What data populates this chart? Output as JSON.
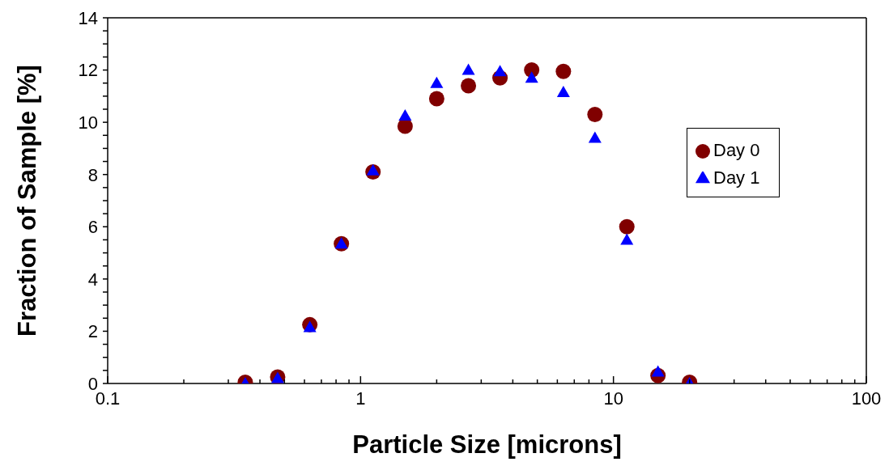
{
  "chart_data": {
    "type": "scatter",
    "xlabel": "Particle Size [microns]",
    "ylabel": "Fraction of Sample [%]",
    "log": "x",
    "grid": false,
    "legend": "right",
    "xlim": [
      0.1,
      100
    ],
    "ylim": [
      0,
      14
    ],
    "xticks": [
      0.1,
      {
        "value": 0.2,
        "label": null
      },
      {
        "value": 0.3,
        "label": null
      },
      {
        "value": 0.4,
        "label": null
      },
      {
        "value": 0.5,
        "label": null
      },
      {
        "value": 0.6,
        "label": null
      },
      {
        "value": 0.7,
        "label": null
      },
      {
        "value": 0.8,
        "label": null
      },
      {
        "value": 0.9,
        "label": null
      },
      1,
      {
        "value": 2,
        "label": null
      },
      {
        "value": 3,
        "label": null
      },
      {
        "value": 4,
        "label": null
      },
      {
        "value": 5,
        "label": null
      },
      {
        "value": 6,
        "label": null
      },
      {
        "value": 7,
        "label": null
      },
      {
        "value": 8,
        "label": null
      },
      {
        "value": 9,
        "label": null
      },
      10,
      {
        "value": 20,
        "label": null
      },
      {
        "value": 30,
        "label": null
      },
      {
        "value": 40,
        "label": null
      },
      {
        "value": 50,
        "label": null
      },
      {
        "value": 60,
        "label": null
      },
      {
        "value": 70,
        "label": null
      },
      {
        "value": 80,
        "label": null
      },
      {
        "value": 90,
        "label": null
      },
      100
    ],
    "yticks": [
      0,
      {
        "value": 0.5,
        "label": null
      },
      {
        "value": 1,
        "label": null
      },
      {
        "value": 1.5,
        "label": null
      },
      2,
      {
        "value": 2.5,
        "label": null
      },
      {
        "value": 3,
        "label": null
      },
      {
        "value": 3.5,
        "label": null
      },
      4,
      {
        "value": 4.5,
        "label": null
      },
      {
        "value": 5,
        "label": null
      },
      {
        "value": 5.5,
        "label": null
      },
      6,
      {
        "value": 6.5,
        "label": null
      },
      {
        "value": 7,
        "label": null
      },
      {
        "value": 7.5,
        "label": null
      },
      8,
      {
        "value": 8.5,
        "label": null
      },
      {
        "value": 9,
        "label": null
      },
      {
        "value": 9.5,
        "label": null
      },
      10,
      {
        "value": 10.5,
        "label": null
      },
      {
        "value": 11,
        "label": null
      },
      {
        "value": 11.5,
        "label": null
      },
      12,
      {
        "value": 12.5,
        "label": null
      },
      {
        "value": 13,
        "label": null
      },
      {
        "value": 13.5,
        "label": null
      },
      14
    ],
    "x": [
      0.35,
      0.47,
      0.63,
      0.84,
      1.12,
      1.5,
      2,
      2.67,
      3.56,
      4.75,
      6.34,
      8.45,
      11.3,
      15,
      20
    ],
    "series": [
      {
        "name": "Day 0",
        "color": "#800000",
        "marker": "circle",
        "values": [
          0.05,
          0.25,
          2.25,
          5.35,
          8.1,
          9.85,
          10.9,
          11.4,
          11.7,
          12.0,
          11.95,
          10.3,
          6.0,
          0.3,
          0.05
        ]
      },
      {
        "name": "Day 1",
        "color": "#0000ff",
        "marker": "triangle",
        "values": [
          0,
          0.2,
          2.15,
          5.35,
          8.15,
          10.25,
          11.5,
          12.0,
          11.95,
          11.7,
          11.15,
          9.4,
          5.5,
          0.45,
          0
        ]
      }
    ]
  }
}
